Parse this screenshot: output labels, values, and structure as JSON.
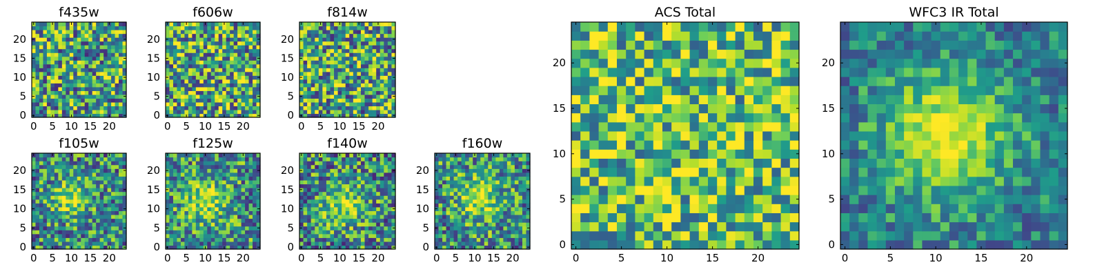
{
  "figure": {
    "title": ""
  },
  "chart_data": [
    {
      "type": "heatmap",
      "title": "f435w",
      "grid_size": 25,
      "colormap": "viridis",
      "vrange": [
        0,
        1
      ],
      "x_ticks": [
        "0",
        "5",
        "10",
        "15",
        "20"
      ],
      "y_ticks": [
        "0",
        "5",
        "10",
        "15",
        "20"
      ],
      "pattern": {
        "seed": 11,
        "background": 0.58,
        "spread": 0.44,
        "peak": 0.0,
        "center": [
          12,
          12
        ],
        "width": 4
      }
    },
    {
      "type": "heatmap",
      "title": "f606w",
      "grid_size": 25,
      "colormap": "viridis",
      "vrange": [
        0,
        1
      ],
      "x_ticks": [
        "0",
        "5",
        "10",
        "15",
        "20"
      ],
      "y_ticks": [
        "0",
        "5",
        "10",
        "15",
        "20"
      ],
      "pattern": {
        "seed": 23,
        "background": 0.62,
        "spread": 0.46,
        "peak": 0.0,
        "center": [
          12,
          12
        ],
        "width": 4
      }
    },
    {
      "type": "heatmap",
      "title": "f814w",
      "grid_size": 25,
      "colormap": "viridis",
      "vrange": [
        0,
        1
      ],
      "x_ticks": [
        "0",
        "5",
        "10",
        "15",
        "20"
      ],
      "y_ticks": [
        "0",
        "5",
        "10",
        "15",
        "20"
      ],
      "pattern": {
        "seed": 37,
        "background": 0.6,
        "spread": 0.45,
        "peak": 0.0,
        "center": [
          12,
          12
        ],
        "width": 4
      }
    },
    {
      "type": "heatmap",
      "title": "f105w",
      "grid_size": 25,
      "colormap": "viridis",
      "vrange": [
        0,
        1
      ],
      "x_ticks": [
        "0",
        "5",
        "10",
        "15",
        "20"
      ],
      "y_ticks": [
        "0",
        "5",
        "10",
        "15",
        "20"
      ],
      "pattern": {
        "seed": 41,
        "background": 0.5,
        "spread": 0.38,
        "peak": 0.38,
        "center": [
          10,
          13
        ],
        "width": 3.5
      }
    },
    {
      "type": "heatmap",
      "title": "f125w",
      "grid_size": 25,
      "colormap": "viridis",
      "vrange": [
        0,
        1
      ],
      "x_ticks": [
        "0",
        "5",
        "10",
        "15",
        "20"
      ],
      "y_ticks": [
        "0",
        "5",
        "10",
        "15",
        "20"
      ],
      "pattern": {
        "seed": 53,
        "background": 0.52,
        "spread": 0.38,
        "peak": 0.36,
        "center": [
          10,
          12
        ],
        "width": 4
      }
    },
    {
      "type": "heatmap",
      "title": "f140w",
      "grid_size": 25,
      "colormap": "viridis",
      "vrange": [
        0,
        1
      ],
      "x_ticks": [
        "0",
        "5",
        "10",
        "15",
        "20"
      ],
      "y_ticks": [
        "0",
        "5",
        "10",
        "15",
        "20"
      ],
      "pattern": {
        "seed": 67,
        "background": 0.5,
        "spread": 0.4,
        "peak": 0.36,
        "center": [
          11,
          11
        ],
        "width": 4
      }
    },
    {
      "type": "heatmap",
      "title": "f160w",
      "grid_size": 25,
      "colormap": "viridis",
      "vrange": [
        0,
        1
      ],
      "x_ticks": [
        "0",
        "5",
        "10",
        "15",
        "20"
      ],
      "y_ticks": [
        "0",
        "5",
        "10",
        "15",
        "20"
      ],
      "pattern": {
        "seed": 79,
        "background": 0.52,
        "spread": 0.38,
        "peak": 0.4,
        "center": [
          11,
          13
        ],
        "width": 4
      }
    },
    {
      "type": "heatmap",
      "title": "ACS Total",
      "grid_size": 25,
      "colormap": "viridis",
      "vrange": [
        0,
        1
      ],
      "x_ticks": [
        "0",
        "5",
        "10",
        "15",
        "20"
      ],
      "y_ticks": [
        "0",
        "5",
        "10",
        "15",
        "20"
      ],
      "pattern": {
        "seed": 97,
        "background": 0.7,
        "spread": 0.36,
        "peak": 0.0,
        "center": [
          12,
          12
        ],
        "width": 4
      }
    },
    {
      "type": "heatmap",
      "title": "WFC3 IR Total",
      "grid_size": 25,
      "colormap": "viridis",
      "vrange": [
        0,
        1
      ],
      "x_ticks": [
        "0",
        "5",
        "10",
        "15",
        "20"
      ],
      "y_ticks": [
        "0",
        "5",
        "10",
        "15",
        "20"
      ],
      "pattern": {
        "seed": 113,
        "background": 0.45,
        "spread": 0.24,
        "peak": 0.5,
        "center": [
          11,
          12
        ],
        "width": 5
      }
    }
  ]
}
